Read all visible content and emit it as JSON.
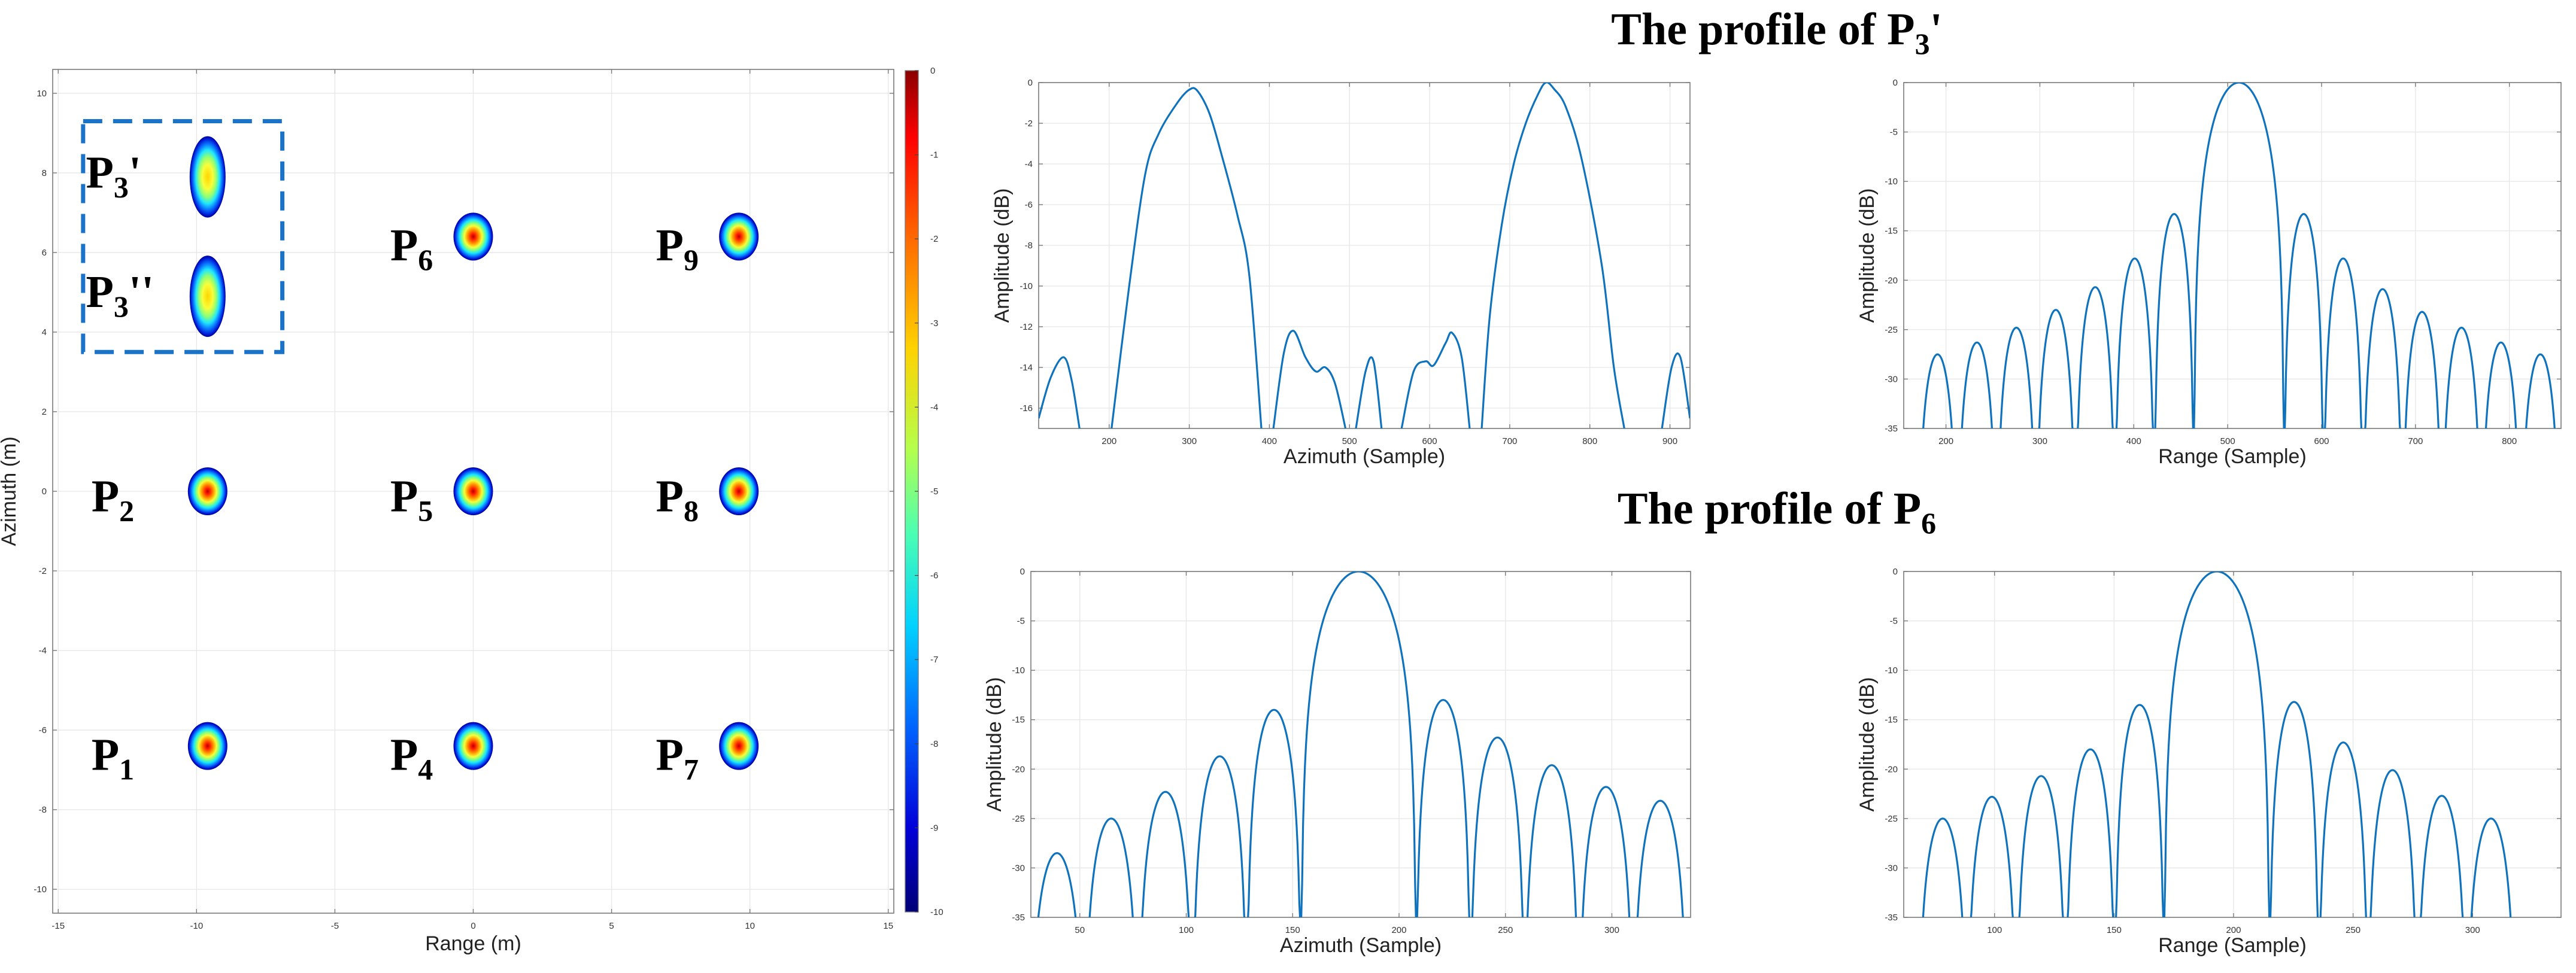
{
  "chart_data": [
    {
      "id": "map",
      "type": "heatmap",
      "title": "",
      "xlabel": "Range (m)",
      "ylabel": "Azimuth (m)",
      "xlim": [
        -15.2,
        15.2
      ],
      "ylim": [
        -10.6,
        10.6
      ],
      "xticks": [
        -15,
        -10,
        -5,
        0,
        5,
        10,
        15
      ],
      "yticks": [
        -10,
        -8,
        -6,
        -4,
        -2,
        0,
        2,
        4,
        6,
        8,
        10
      ],
      "colorbar": {
        "range": [
          -10,
          0
        ],
        "ticks": [
          0,
          -1,
          -2,
          -3,
          -4,
          -5,
          -6,
          -7,
          -8,
          -9,
          -10
        ]
      },
      "points": [
        {
          "label": "P",
          "sub": "1",
          "x": -9.6,
          "y": -6.4,
          "shape": "round"
        },
        {
          "label": "P",
          "sub": "2",
          "x": -9.6,
          "y": 0.0,
          "shape": "round"
        },
        {
          "label": "P",
          "sub": "4",
          "x": 0.0,
          "y": -6.4,
          "shape": "round"
        },
        {
          "label": "P",
          "sub": "5",
          "x": 0.0,
          "y": 0.0,
          "shape": "round"
        },
        {
          "label": "P",
          "sub": "6",
          "x": 0.0,
          "y": 6.4,
          "shape": "round"
        },
        {
          "label": "P",
          "sub": "7",
          "x": 9.6,
          "y": -6.4,
          "shape": "round"
        },
        {
          "label": "P",
          "sub": "8",
          "x": 9.6,
          "y": 0.0,
          "shape": "round"
        },
        {
          "label": "P",
          "sub": "9",
          "x": 9.6,
          "y": 6.4,
          "shape": "round"
        },
        {
          "label": "P",
          "sub": "3",
          "suffix": "'",
          "x": -9.6,
          "y": 7.9,
          "shape": "elongated"
        },
        {
          "label": "P",
          "sub": "3",
          "suffix": "''",
          "x": -9.6,
          "y": 4.9,
          "shape": "elongated"
        }
      ],
      "inset_box": {
        "x0": -14.1,
        "x1": -6.9,
        "y0": 3.5,
        "y1": 9.3
      }
    },
    {
      "id": "p3-azimuth",
      "type": "line",
      "group_title": {
        "prefix": "The profile of P",
        "sub": "3",
        "suffix": "'"
      },
      "xlabel": "Azimuth (Sample)",
      "ylabel": "Amplitude (dB)",
      "xlim": [
        112,
        925
      ],
      "ylim": [
        -17,
        0
      ],
      "xticks": [
        200,
        300,
        400,
        500,
        600,
        700,
        800,
        900
      ],
      "yticks": [
        0,
        -2,
        -4,
        -6,
        -8,
        -10,
        -12,
        -14,
        -16
      ],
      "series": [
        {
          "name": "lobe-1",
          "x": [
            112,
            127,
            143,
            153,
            163
          ],
          "y": [
            -16.5,
            -14.5,
            -13.5,
            -14.6,
            -17
          ]
        },
        {
          "name": "main-1",
          "x": [
            203,
            225,
            245,
            262,
            285,
            300,
            310,
            325,
            340,
            360,
            375,
            390
          ],
          "y": [
            -17,
            -10,
            -4.5,
            -2.5,
            -1.0,
            -0.35,
            -0.4,
            -1.5,
            -3.5,
            -6.5,
            -9.5,
            -17
          ]
        },
        {
          "name": "lobe-2",
          "x": [
            405,
            418,
            430,
            445,
            458,
            470,
            482,
            495
          ],
          "y": [
            -17,
            -13.3,
            -12.2,
            -13.5,
            -14.2,
            -14.0,
            -14.8,
            -17
          ]
        },
        {
          "name": "lobe-3",
          "x": [
            508,
            520,
            530,
            540
          ],
          "y": [
            -17,
            -14.2,
            -13.7,
            -17
          ]
        },
        {
          "name": "lobe-4",
          "x": [
            565,
            580,
            595,
            605,
            620,
            628,
            640,
            650
          ],
          "y": [
            -17,
            -14.2,
            -13.7,
            -13.9,
            -12.8,
            -12.3,
            -13.5,
            -17
          ]
        },
        {
          "name": "main-2",
          "x": [
            665,
            675,
            690,
            705,
            720,
            735,
            745,
            755,
            770,
            790,
            815,
            830,
            843
          ],
          "y": [
            -17,
            -11.5,
            -7.0,
            -4.0,
            -2.0,
            -0.6,
            0.0,
            -0.3,
            -1.2,
            -3.8,
            -9.0,
            -14.0,
            -17
          ]
        },
        {
          "name": "lobe-5",
          "x": [
            890,
            902,
            913,
            925
          ],
          "y": [
            -17,
            -14.0,
            -13.5,
            -16.5
          ]
        }
      ]
    },
    {
      "id": "p3-range",
      "type": "line",
      "xlabel": "Range (Sample)",
      "ylabel": "Amplitude (dB)",
      "xlim": [
        155,
        855
      ],
      "ylim": [
        -35,
        0
      ],
      "xticks": [
        200,
        300,
        400,
        500,
        600,
        700,
        800
      ],
      "yticks": [
        0,
        -5,
        -10,
        -15,
        -20,
        -25,
        -30,
        -35
      ],
      "main_center": 512,
      "lobe_spacing": 42,
      "main_null_half_width": 48,
      "main_peak": 0,
      "sidelobe_peaks_left": [
        -13.3,
        -17.8,
        -20.7,
        -23.0,
        -24.8,
        -26.3,
        -27.5
      ],
      "sidelobe_peaks_right": [
        -13.3,
        -17.8,
        -20.9,
        -23.2,
        -24.8,
        -26.3,
        -27.5
      ]
    },
    {
      "id": "p6-azimuth",
      "type": "line",
      "group_title": {
        "prefix": "The profile of P",
        "sub": "6",
        "suffix": ""
      },
      "xlabel": "Azimuth (Sample)",
      "ylabel": "Amplitude (dB)",
      "xlim": [
        27,
        337
      ],
      "ylim": [
        -35,
        0
      ],
      "xticks": [
        50,
        100,
        150,
        200,
        250,
        300
      ],
      "yticks": [
        0,
        -5,
        -10,
        -15,
        -20,
        -25,
        -30,
        -35
      ],
      "main_center": 181,
      "lobe_spacing": 25.5,
      "main_null_half_width": 27,
      "main_peak": 0,
      "sidelobe_peaks_left": [
        -14.0,
        -18.7,
        -22.3,
        -25.0,
        -28.5
      ],
      "sidelobe_peaks_right": [
        -13.0,
        -16.8,
        -19.6,
        -21.8,
        -23.2
      ]
    },
    {
      "id": "p6-range",
      "type": "line",
      "xlabel": "Range (Sample)",
      "ylabel": "Amplitude (dB)",
      "xlim": [
        62,
        337
      ],
      "ylim": [
        -35,
        0
      ],
      "xticks": [
        100,
        150,
        200,
        250,
        300
      ],
      "yticks": [
        0,
        -5,
        -10,
        -15,
        -20,
        -25,
        -30,
        -35
      ],
      "main_center": 193,
      "lobe_spacing": 20.6,
      "main_null_half_width": 22,
      "main_peak": 0,
      "sidelobe_peaks_left": [
        -13.5,
        -18.0,
        -20.7,
        -22.8,
        -25.0
      ],
      "sidelobe_peaks_right": [
        -13.2,
        -17.3,
        -20.1,
        -22.7,
        -25.0
      ]
    }
  ]
}
